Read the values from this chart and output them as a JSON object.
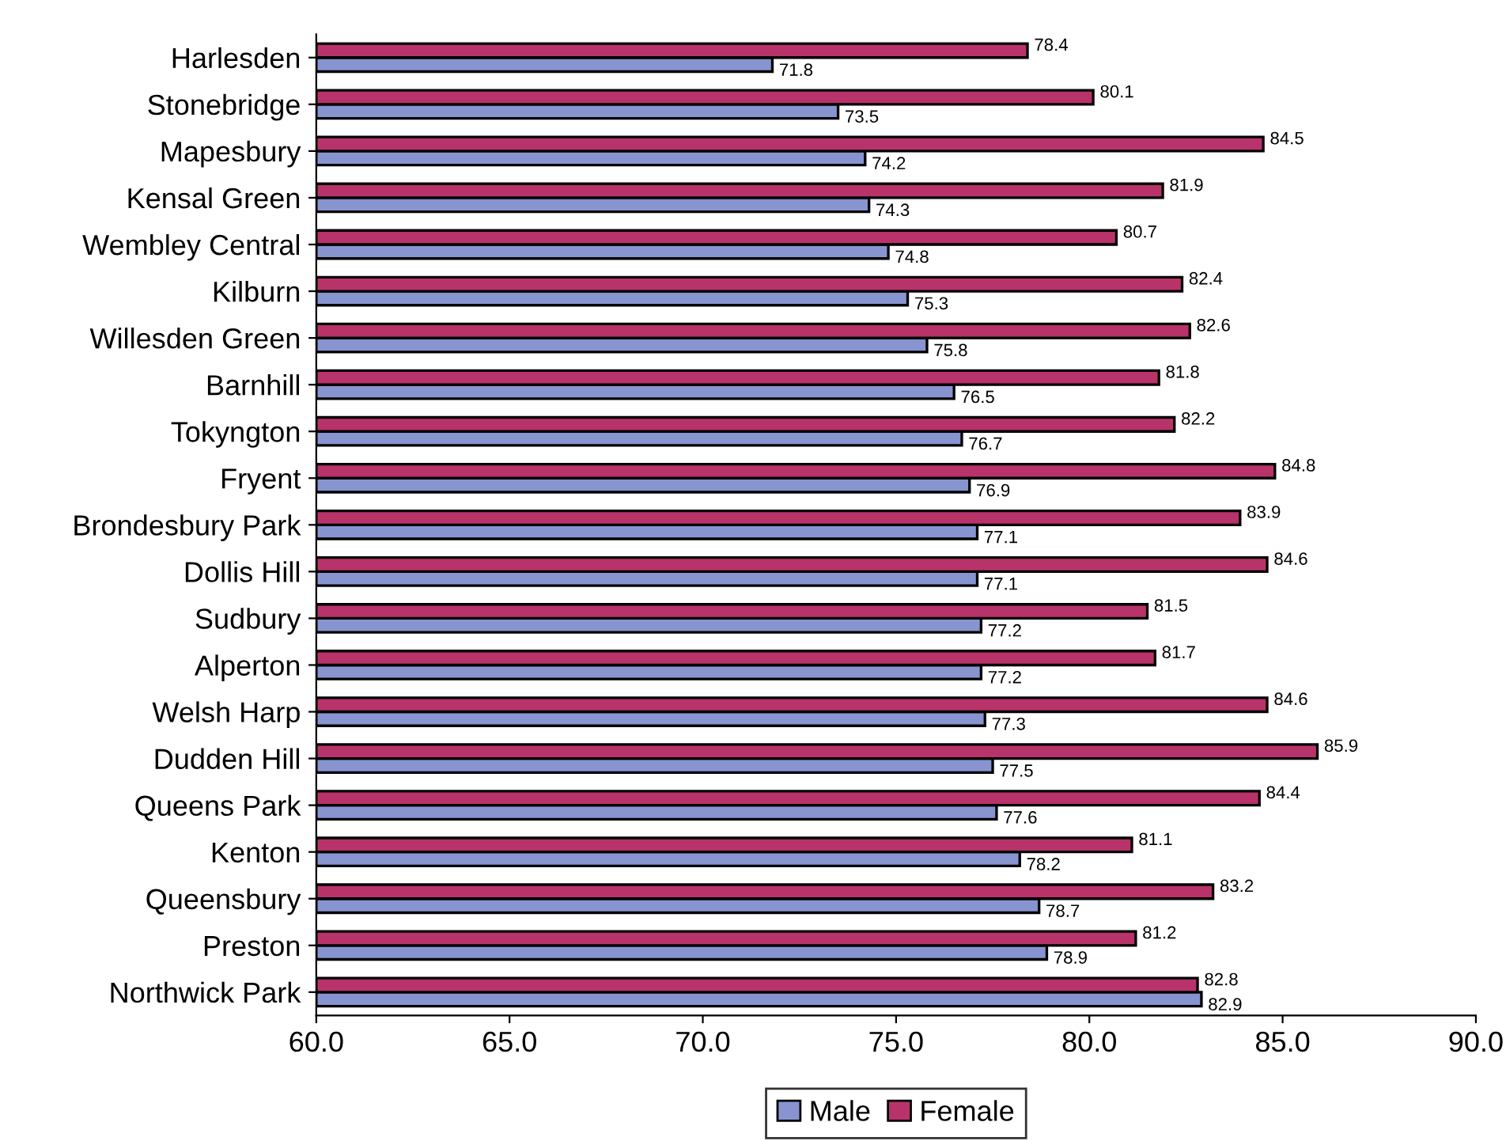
{
  "chart_data": {
    "type": "bar",
    "orientation": "horizontal",
    "categories": [
      "Harlesden",
      "Stonebridge",
      "Mapesbury",
      "Kensal Green",
      "Wembley Central",
      "Kilburn",
      "Willesden Green",
      "Barnhill",
      "Tokyngton",
      "Fryent",
      "Brondesbury Park",
      "Dollis Hill",
      "Sudbury",
      "Alperton",
      "Welsh Harp",
      "Dudden Hill",
      "Queens Park",
      "Kenton",
      "Queensbury",
      "Preston",
      "Northwick Park"
    ],
    "series": [
      {
        "name": "Male",
        "color": "#8794d0",
        "values": [
          71.8,
          73.5,
          74.2,
          74.3,
          74.8,
          75.3,
          75.8,
          76.5,
          76.7,
          76.9,
          77.1,
          77.1,
          77.2,
          77.2,
          77.3,
          77.5,
          77.6,
          78.2,
          78.7,
          78.9,
          82.9
        ]
      },
      {
        "name": "Female",
        "color": "#b8336a",
        "values": [
          78.4,
          80.1,
          84.5,
          81.9,
          80.7,
          82.4,
          82.6,
          81.8,
          82.2,
          84.8,
          83.9,
          84.6,
          81.5,
          81.7,
          84.6,
          85.9,
          84.4,
          81.1,
          83.2,
          81.2,
          82.8
        ]
      }
    ],
    "xlim": [
      60,
      90
    ],
    "xticks": [
      {
        "value": 60,
        "label": "60.0"
      },
      {
        "value": 65,
        "label": "65.0"
      },
      {
        "value": 70,
        "label": "70.0"
      },
      {
        "value": 75,
        "label": "75.0"
      },
      {
        "value": 80,
        "label": "80.0"
      },
      {
        "value": 85,
        "label": "85.0"
      },
      {
        "value": 90,
        "label": "90.0"
      }
    ],
    "data_labels": true,
    "legend": "bottom",
    "grid": false
  }
}
